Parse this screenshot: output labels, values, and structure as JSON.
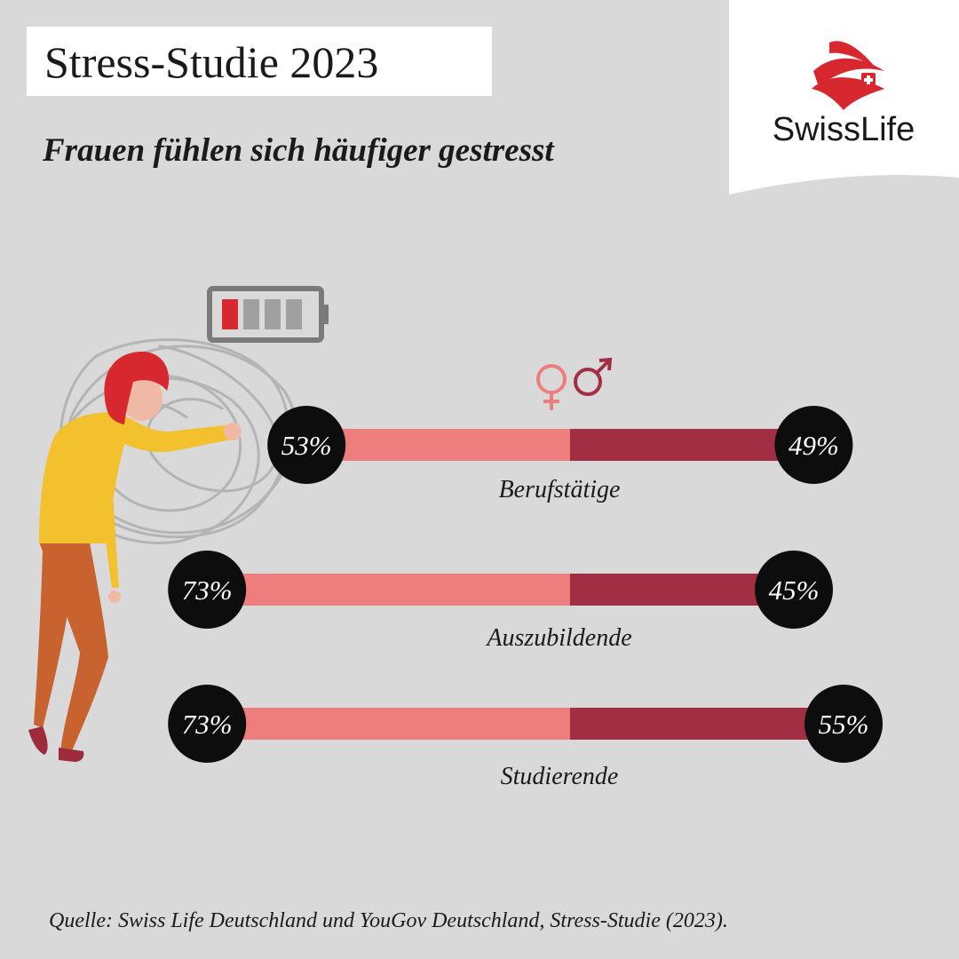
{
  "title": "Stress-Studie 2023",
  "subtitle": "Frauen fühlen sich häufiger gestresst",
  "source": "Quelle: Swiss Life Deutschland und YouGov Deutschland, Stress-Studie (2023).",
  "brand": {
    "name": "SwissLife"
  },
  "legend": {
    "female_symbol": "♀",
    "male_symbol": "♂"
  },
  "colors": {
    "background": "#d9d9d9",
    "female": "#ee7e7e",
    "male": "#a22e43",
    "circle": "#0d0d0d",
    "brand_red": "#d8282f"
  },
  "chart_data": {
    "type": "bar",
    "categories": [
      "Berufstätige",
      "Auszubildende",
      "Studierende"
    ],
    "series": [
      {
        "values": [
          53,
          73,
          73
        ],
        "labels": [
          "53%",
          "73%",
          "73%"
        ]
      },
      {
        "values": [
          49,
          45,
          55
        ],
        "labels": [
          "49%",
          "45%",
          "55%"
        ]
      }
    ],
    "unit": "%"
  }
}
